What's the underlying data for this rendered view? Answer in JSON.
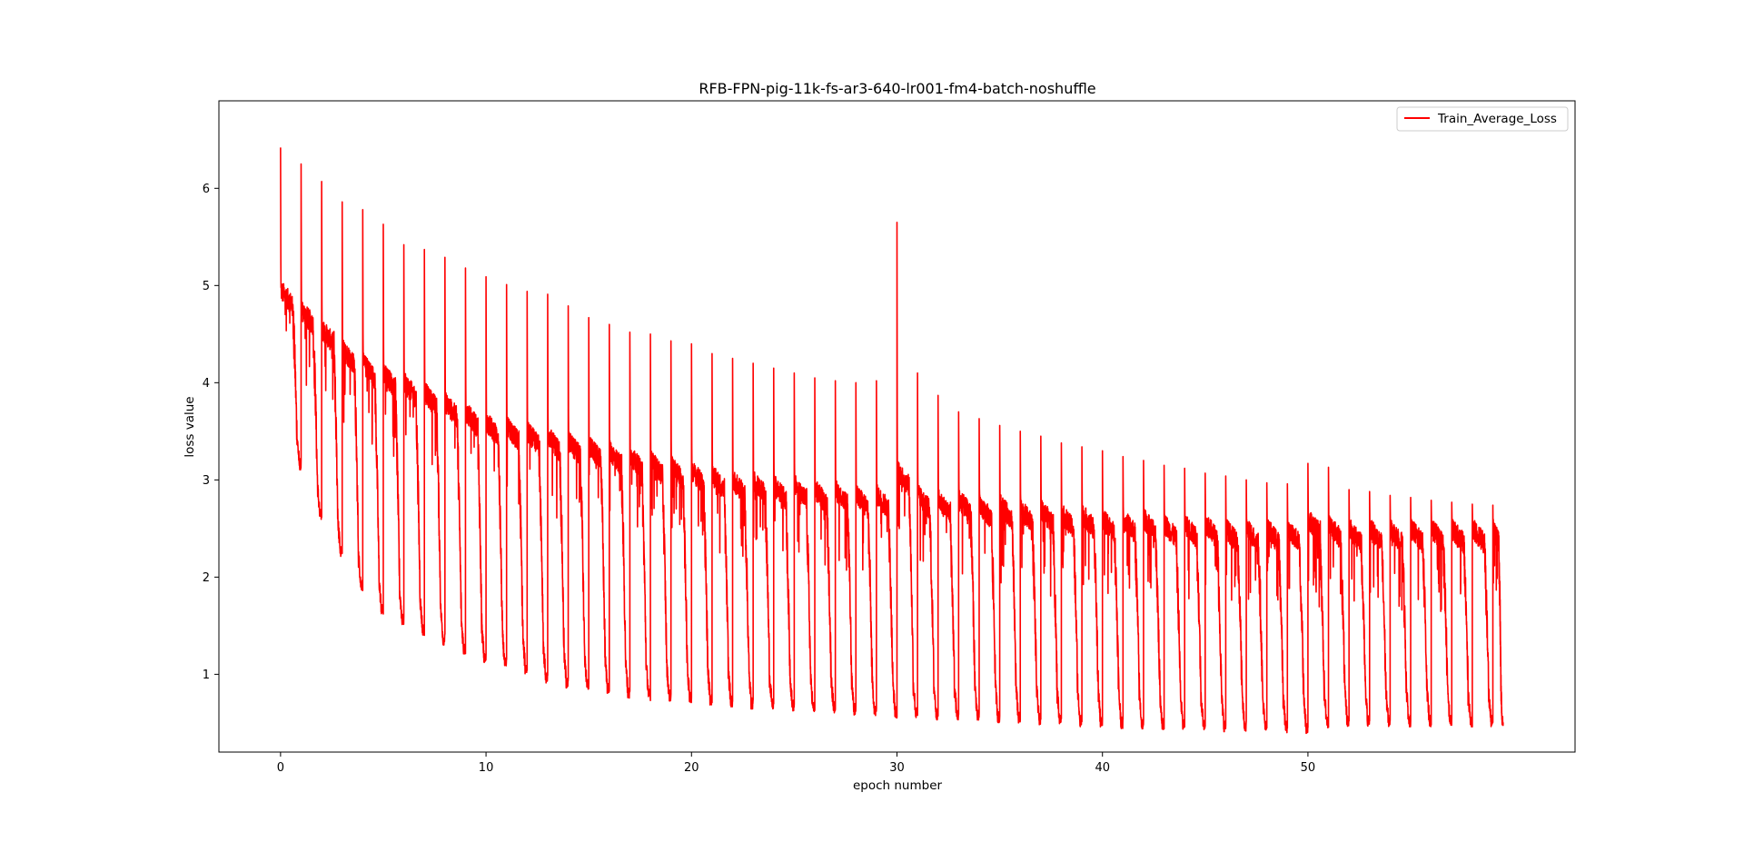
{
  "chart_data": {
    "type": "line",
    "title": "RFB-FPN-pig-11k-fs-ar3-640-lr001-fm4-batch-noshuffle",
    "xlabel": "epoch number",
    "ylabel": "loss value",
    "xlim": [
      -3,
      63
    ],
    "ylim": [
      0.2,
      6.9
    ],
    "xticks": [
      0,
      10,
      20,
      30,
      40,
      50
    ],
    "yticks": [
      1,
      2,
      3,
      4,
      5,
      6
    ],
    "xtick_labels": [
      "0",
      "10",
      "20",
      "30",
      "40",
      "50"
    ],
    "ytick_labels": [
      "1",
      "2",
      "3",
      "4",
      "5",
      "6"
    ],
    "grid": false,
    "legend_position": "upper right",
    "series": [
      {
        "name": "Train_Average_Loss",
        "color": "#ff0000",
        "epochs": 59.5,
        "start_value": 6.42,
        "epoch_start_peaks": [
          6.42,
          6.25,
          6.07,
          5.86,
          5.78,
          5.63,
          5.42,
          5.37,
          5.29,
          5.18,
          5.09,
          5.01,
          4.94,
          4.91,
          4.79,
          4.67,
          4.6,
          4.52,
          4.5,
          4.43,
          4.4,
          4.3,
          4.25,
          4.2,
          4.15,
          4.1,
          4.05,
          4.02,
          4.0,
          4.02,
          5.65,
          4.1,
          3.87,
          3.7,
          3.63,
          3.56,
          3.5,
          3.45,
          3.38,
          3.34,
          3.3,
          3.24,
          3.2,
          3.15,
          3.12,
          3.07,
          3.04,
          3.0,
          2.97,
          2.96,
          3.17,
          3.13,
          2.9,
          2.88,
          2.84,
          2.82,
          2.79,
          2.77,
          2.75,
          2.74
        ],
        "plateau_values": [
          4.95,
          4.75,
          4.55,
          4.35,
          4.2,
          4.1,
          4.0,
          3.9,
          3.8,
          3.7,
          3.6,
          3.55,
          3.5,
          3.45,
          3.4,
          3.35,
          3.3,
          3.25,
          3.2,
          3.15,
          3.1,
          3.05,
          3.0,
          3.0,
          2.95,
          2.95,
          2.9,
          2.9,
          2.85,
          2.85,
          3.1,
          2.85,
          2.8,
          2.8,
          2.75,
          2.75,
          2.7,
          2.7,
          2.65,
          2.65,
          2.6,
          2.6,
          2.6,
          2.55,
          2.55,
          2.55,
          2.5,
          2.5,
          2.5,
          2.5,
          2.6,
          2.55,
          2.5,
          2.5,
          2.5,
          2.5,
          2.5,
          2.5,
          2.5,
          2.5
        ],
        "epoch_end_minimums": [
          3.1,
          2.58,
          2.2,
          1.86,
          1.6,
          1.5,
          1.4,
          1.3,
          1.2,
          1.1,
          1.05,
          1.0,
          0.9,
          0.85,
          0.83,
          0.8,
          0.75,
          0.73,
          0.72,
          0.7,
          0.68,
          0.66,
          0.64,
          0.63,
          0.62,
          0.6,
          0.6,
          0.58,
          0.56,
          0.55,
          0.54,
          0.53,
          0.52,
          0.51,
          0.5,
          0.49,
          0.48,
          0.47,
          0.46,
          0.45,
          0.44,
          0.43,
          0.43,
          0.42,
          0.42,
          0.41,
          0.41,
          0.4,
          0.4,
          0.39,
          0.45,
          0.46,
          0.46,
          0.46,
          0.46,
          0.46,
          0.46,
          0.46,
          0.46,
          0.46
        ],
        "final_value": 0.47
      }
    ]
  }
}
